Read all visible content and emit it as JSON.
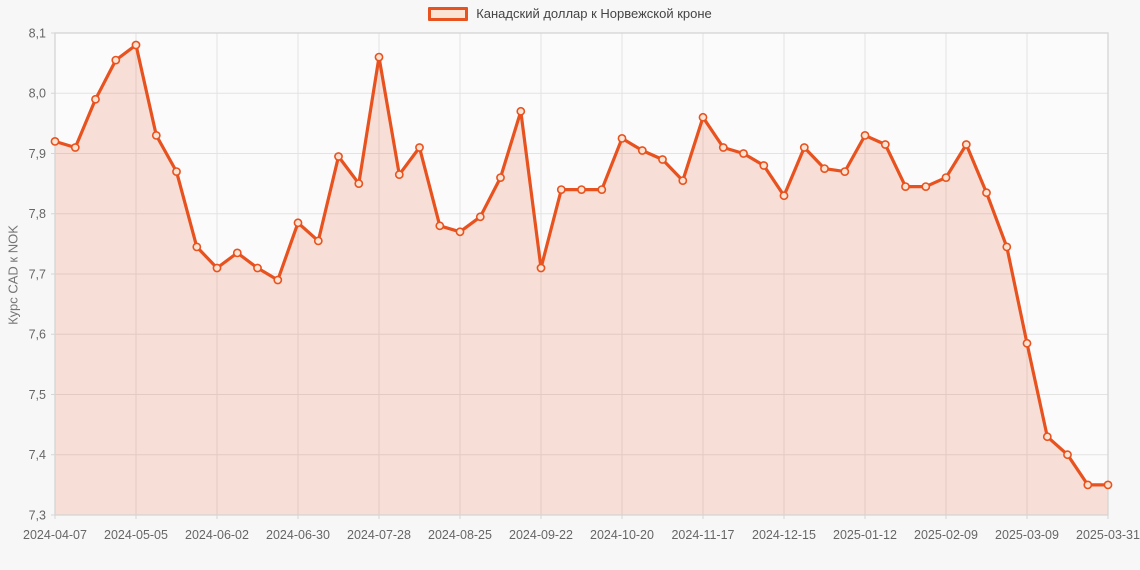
{
  "legend": {
    "series_label": "Канадский доллар к Норвежской кроне"
  },
  "colors": {
    "line": "#e8521f",
    "area_fill": "rgba(232, 82, 31, 0.16)",
    "marker_fill": "#fbe4d3",
    "swatch_fill": "#fbe4d3",
    "grid": "#e3e3e3",
    "plot_border": "#d5d5d5",
    "plot_bg": "#fbfbfb",
    "page_bg": "#f7f7f7",
    "tick_text": "#666666",
    "legend_text": "#444444",
    "axis_title_text": "#757575"
  },
  "chart_data": {
    "type": "line",
    "title": "",
    "xlabel": "",
    "ylabel": "Курс CAD к NOK",
    "grid": true,
    "area": true,
    "markers": true,
    "legend_position": "top",
    "ylim": [
      7.3,
      8.1
    ],
    "y_ticks": [
      8.1,
      8.0,
      7.9,
      7.8,
      7.7,
      7.6,
      7.5,
      7.4,
      7.3
    ],
    "y_tick_labels": [
      "8,1",
      "8,0",
      "7,9",
      "7,8",
      "7,7",
      "7,6",
      "7,5",
      "7,4",
      "7,3"
    ],
    "x_tick_indices": [
      0,
      4,
      8,
      12,
      16,
      20,
      24,
      28,
      32,
      36,
      40,
      44,
      48,
      52
    ],
    "x_tick_labels": [
      "2024-04-07",
      "2024-05-05",
      "2024-06-02",
      "2024-06-30",
      "2024-07-28",
      "2024-08-25",
      "2024-09-22",
      "2024-10-20",
      "2024-11-17",
      "2024-12-15",
      "2025-01-12",
      "2025-02-09",
      "2025-03-09",
      "2025-03-31"
    ],
    "x": [
      "2024-04-07",
      "2024-04-14",
      "2024-04-21",
      "2024-04-28",
      "2024-05-05",
      "2024-05-12",
      "2024-05-19",
      "2024-05-26",
      "2024-06-02",
      "2024-06-09",
      "2024-06-16",
      "2024-06-23",
      "2024-06-30",
      "2024-07-07",
      "2024-07-14",
      "2024-07-21",
      "2024-07-28",
      "2024-08-04",
      "2024-08-11",
      "2024-08-18",
      "2024-08-25",
      "2024-09-01",
      "2024-09-08",
      "2024-09-15",
      "2024-09-22",
      "2024-09-29",
      "2024-10-06",
      "2024-10-13",
      "2024-10-20",
      "2024-10-27",
      "2024-11-03",
      "2024-11-10",
      "2024-11-17",
      "2024-11-24",
      "2024-12-01",
      "2024-12-08",
      "2024-12-15",
      "2024-12-22",
      "2024-12-29",
      "2025-01-05",
      "2025-01-12",
      "2025-01-19",
      "2025-01-26",
      "2025-02-02",
      "2025-02-09",
      "2025-02-16",
      "2025-02-23",
      "2025-03-02",
      "2025-03-09",
      "2025-03-16",
      "2025-03-23",
      "2025-03-30",
      "2025-03-31"
    ],
    "series": [
      {
        "name": "Канадский доллар к Норвежской кроне",
        "values": [
          7.92,
          7.91,
          7.99,
          8.055,
          8.08,
          7.93,
          7.87,
          7.745,
          7.71,
          7.735,
          7.71,
          7.69,
          7.785,
          7.755,
          7.895,
          7.85,
          8.06,
          7.865,
          7.91,
          7.78,
          7.77,
          7.795,
          7.86,
          7.97,
          7.71,
          7.84,
          7.84,
          7.84,
          7.925,
          7.905,
          7.89,
          7.855,
          7.96,
          7.91,
          7.9,
          7.88,
          7.83,
          7.91,
          7.875,
          7.87,
          7.93,
          7.915,
          7.845,
          7.845,
          7.86,
          7.915,
          7.835,
          7.745,
          7.585,
          7.43,
          7.4,
          7.35,
          7.35
        ]
      }
    ]
  }
}
